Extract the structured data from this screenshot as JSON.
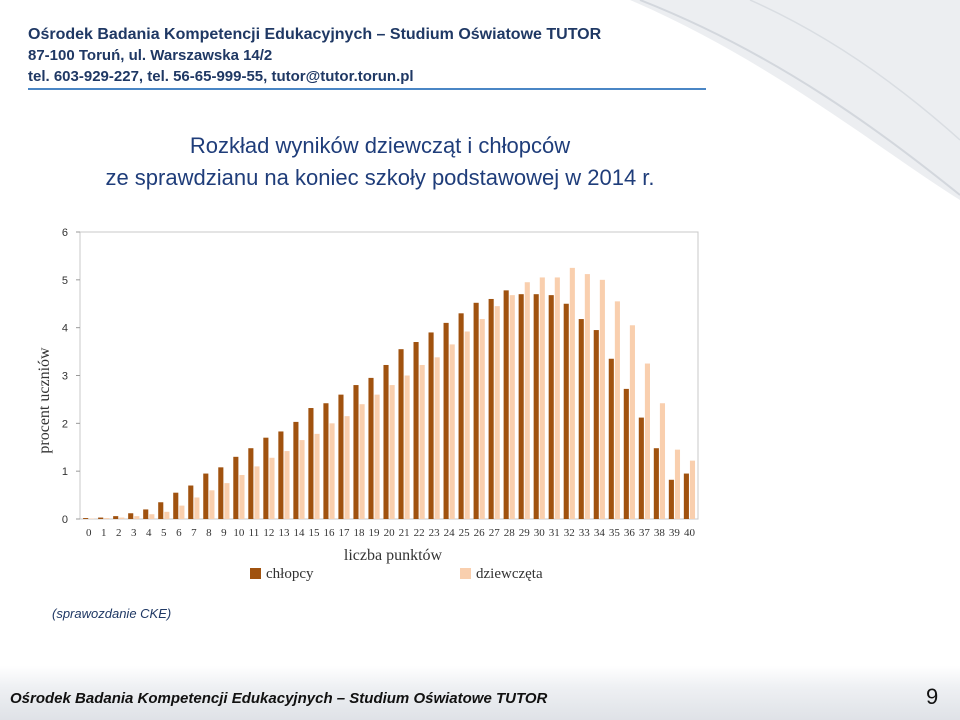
{
  "header": {
    "line1": "Ośrodek Badania Kompetencji Edukacyjnych – Studium Oświatowe TUTOR",
    "line2": "87-100 Toruń, ul. Warszawska 14/2",
    "line3": "tel. 603-929-227, tel. 56-65-999-55, tutor@tutor.torun.pl"
  },
  "title": {
    "line1": "Rozkład wyników dziewcząt i chłopców",
    "line2": "ze sprawdzianu na koniec szkoły podstawowej w 2014 r."
  },
  "source_note": "(sprawozdanie CKE)",
  "footer": {
    "text": "Ośrodek Badania Kompetencji Edukacyjnych – Studium Oświatowe TUTOR",
    "page_number": "9"
  },
  "colors": {
    "boys": "#a0520f",
    "girls": "#f9cfae",
    "header_text": "#1f3864",
    "title_text": "#1f3d7a",
    "rule": "#4a86c5"
  },
  "chart_data": {
    "type": "bar",
    "xlabel": "liczba punktów",
    "ylabel": "procent uczniów",
    "ylim": [
      0,
      6
    ],
    "yticks": [
      0,
      1,
      2,
      3,
      4,
      5,
      6
    ],
    "grid": false,
    "legend_position": "bottom",
    "categories": [
      "0",
      "1",
      "2",
      "3",
      "4",
      "5",
      "6",
      "7",
      "8",
      "9",
      "10",
      "11",
      "12",
      "13",
      "14",
      "15",
      "16",
      "17",
      "18",
      "19",
      "20",
      "21",
      "22",
      "23",
      "24",
      "25",
      "26",
      "27",
      "28",
      "29",
      "30",
      "31",
      "32",
      "33",
      "34",
      "35",
      "36",
      "37",
      "38",
      "39",
      "40"
    ],
    "series": [
      {
        "name": "chłopcy",
        "values": [
          0.02,
          0.03,
          0.06,
          0.12,
          0.2,
          0.35,
          0.55,
          0.7,
          0.95,
          1.08,
          1.3,
          1.48,
          1.7,
          1.83,
          2.03,
          2.32,
          2.42,
          2.6,
          2.8,
          2.95,
          3.22,
          3.55,
          3.7,
          3.9,
          4.1,
          4.3,
          4.52,
          4.6,
          4.78,
          4.7,
          4.7,
          4.68,
          4.5,
          4.18,
          3.95,
          3.35,
          2.72,
          2.12,
          1.48,
          0.82,
          0.95
        ]
      },
      {
        "name": "dziewczęta",
        "values": [
          0.01,
          0.02,
          0.03,
          0.06,
          0.1,
          0.15,
          0.28,
          0.45,
          0.6,
          0.75,
          0.92,
          1.1,
          1.28,
          1.42,
          1.65,
          1.78,
          2.0,
          2.15,
          2.4,
          2.6,
          2.8,
          3.0,
          3.22,
          3.38,
          3.65,
          3.92,
          4.18,
          4.45,
          4.68,
          4.95,
          5.05,
          5.05,
          5.25,
          5.12,
          5.0,
          4.55,
          4.05,
          3.25,
          2.42,
          1.45,
          1.22
        ]
      }
    ]
  }
}
